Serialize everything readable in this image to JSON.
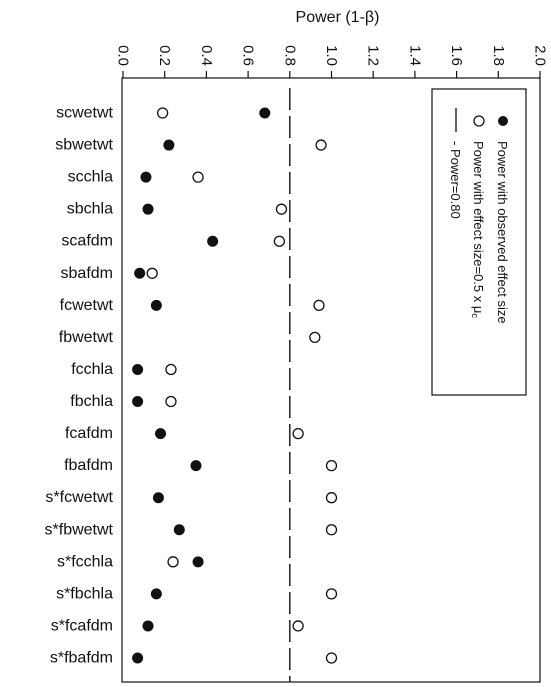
{
  "chart_data": {
    "type": "scatter",
    "xlabel": "Power (1-β)",
    "xlim": [
      0.0,
      2.0
    ],
    "xticks": [
      "0.0",
      "0.2",
      "0.4",
      "0.6",
      "0.8",
      "1.0",
      "1.2",
      "1.4",
      "1.6",
      "1.8",
      "2.0"
    ],
    "reference_line": {
      "value": 0.8,
      "style": "dashed"
    },
    "categories": [
      "scwetwt",
      "sbwetwt",
      "scchla",
      "sbchla",
      "scafdm",
      "sbafdm",
      "fcwetwt",
      "fbwetwt",
      "fcchla",
      "fbchla",
      "fcafdm",
      "fbafdm",
      "s*fcwetwt",
      "s*fbwetwt",
      "s*fcchla",
      "s*fbchla",
      "s*fcafdm",
      "s*fbafdm"
    ],
    "series": [
      {
        "name": "Power with observed effect size",
        "marker": "filled-circle",
        "color": "#111111",
        "values": [
          0.68,
          0.22,
          0.11,
          0.12,
          0.43,
          0.08,
          0.16,
          null,
          0.07,
          0.07,
          0.18,
          0.35,
          0.17,
          0.27,
          0.36,
          0.16,
          0.12,
          0.07
        ]
      },
      {
        "name": "Power with effect size=0.5 x μc",
        "marker": "open-circle",
        "color": "#111111",
        "values": [
          0.19,
          0.95,
          0.36,
          0.76,
          0.75,
          0.14,
          0.94,
          0.92,
          0.23,
          0.23,
          0.84,
          1.0,
          1.0,
          1.0,
          0.24,
          1.0,
          0.84,
          1.0
        ]
      }
    ],
    "legend": {
      "position": "top-right",
      "entries": [
        {
          "symbol": "filled-circle",
          "label": "Power with observed effect size"
        },
        {
          "symbol": "open-circle",
          "label": "Power with effect size=0.5 x μ",
          "subscript": "c"
        },
        {
          "symbol": "dash-line",
          "label": "- Power=0.80"
        }
      ]
    },
    "grid": false
  }
}
